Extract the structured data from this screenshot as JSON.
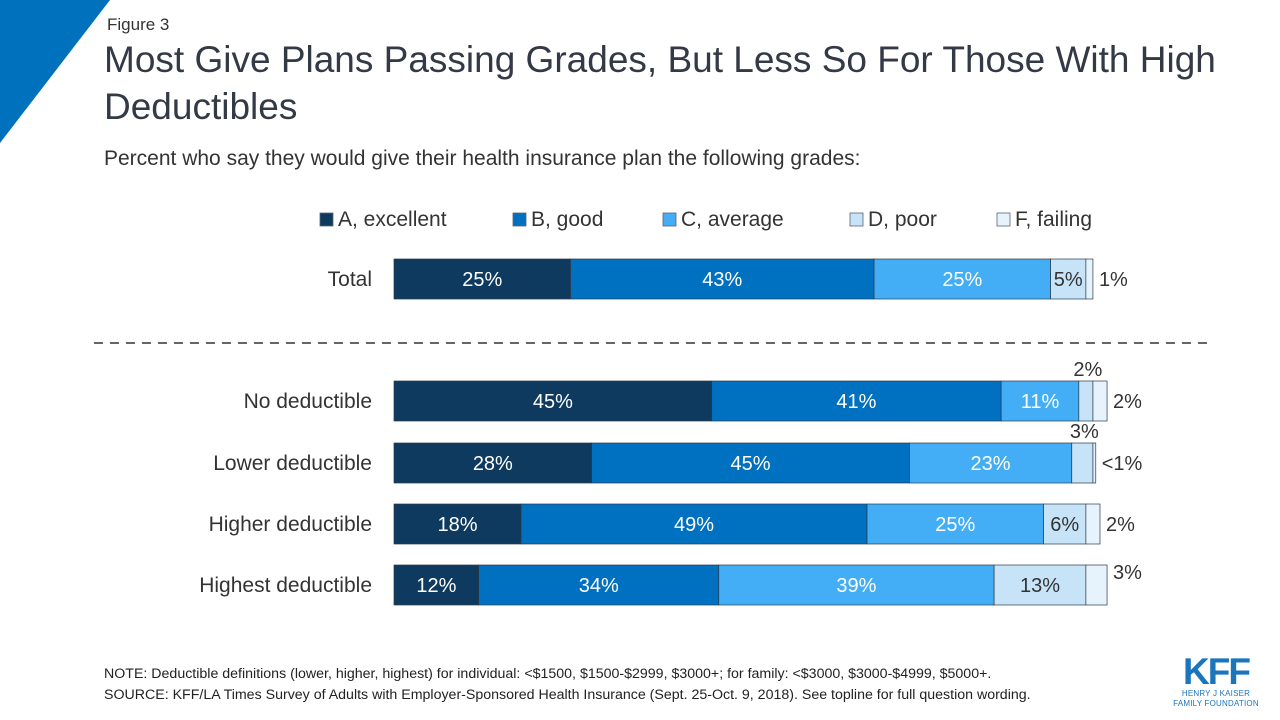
{
  "figure_label": "Figure 3",
  "title": "Most Give Plans Passing Grades, But Less So For Those With High Deductibles",
  "subtitle": "Percent who say they would give their health insurance plan the following grades:",
  "colors": {
    "accent": "#0071bc",
    "series": [
      "#0f3a5f",
      "#0071c1",
      "#43aef5",
      "#c6e3f8",
      "#e6f3fd"
    ]
  },
  "chart_data": {
    "type": "bar",
    "orientation": "horizontal",
    "stacked": true,
    "xlim": [
      0,
      100
    ],
    "legend_position": "top",
    "categories": [
      "Total",
      "No deductible",
      "Lower deductible",
      "Higher deductible",
      "Highest deductible"
    ],
    "series": [
      {
        "name": "A, excellent",
        "values": [
          25,
          45,
          28,
          18,
          12
        ],
        "labels": [
          "25%",
          "45%",
          "28%",
          "18%",
          "12%"
        ]
      },
      {
        "name": "B, good",
        "values": [
          43,
          41,
          45,
          49,
          34
        ],
        "labels": [
          "43%",
          "41%",
          "45%",
          "49%",
          "34%"
        ]
      },
      {
        "name": "C, average",
        "values": [
          25,
          11,
          23,
          25,
          39
        ],
        "labels": [
          "25%",
          "11%",
          "23%",
          "25%",
          "39%"
        ]
      },
      {
        "name": "D, poor",
        "values": [
          5,
          2,
          3,
          6,
          13
        ],
        "labels": [
          "5%",
          "2%",
          "3%",
          "6%",
          "13%"
        ]
      },
      {
        "name": "F, failing",
        "values": [
          1,
          2,
          0.4,
          2,
          3
        ],
        "labels": [
          "1%",
          "2%",
          "<1%",
          "2%",
          "3%"
        ]
      }
    ]
  },
  "footer": {
    "note": "NOTE: Deductible definitions (lower, higher, highest) for individual: <$1500, $1500-$2999, $3000+; for family: <$3000, $3000-$4999, $5000+.",
    "source": "SOURCE: KFF/LA Times Survey of Adults with Employer-Sponsored Health Insurance (Sept. 25-Oct. 9, 2018). See topline for full question wording."
  },
  "logo": {
    "mark": "KFF",
    "line1": "HENRY J KAISER",
    "line2": "FAMILY FOUNDATION"
  }
}
